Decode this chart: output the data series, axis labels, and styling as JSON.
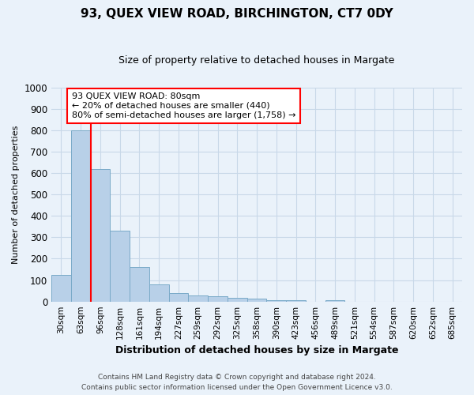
{
  "title": "93, QUEX VIEW ROAD, BIRCHINGTON, CT7 0DY",
  "subtitle": "Size of property relative to detached houses in Margate",
  "xlabel": "Distribution of detached houses by size in Margate",
  "ylabel": "Number of detached properties",
  "footnote1": "Contains HM Land Registry data © Crown copyright and database right 2024.",
  "footnote2": "Contains public sector information licensed under the Open Government Licence v3.0.",
  "bar_labels": [
    "30sqm",
    "63sqm",
    "96sqm",
    "128sqm",
    "161sqm",
    "194sqm",
    "227sqm",
    "259sqm",
    "292sqm",
    "325sqm",
    "358sqm",
    "390sqm",
    "423sqm",
    "456sqm",
    "489sqm",
    "521sqm",
    "554sqm",
    "587sqm",
    "620sqm",
    "652sqm",
    "685sqm"
  ],
  "bar_values": [
    125,
    800,
    620,
    330,
    160,
    80,
    40,
    28,
    25,
    18,
    12,
    8,
    7,
    0,
    8,
    0,
    0,
    0,
    0,
    0,
    0
  ],
  "bar_color": "#b8d0e8",
  "bar_edge_color": "#7aaac8",
  "grid_color": "#c8d8e8",
  "background_color": "#eaf2fa",
  "ylim": [
    0,
    1000
  ],
  "yticks": [
    0,
    100,
    200,
    300,
    400,
    500,
    600,
    700,
    800,
    900,
    1000
  ],
  "property_line_color": "red",
  "annotation_text": "93 QUEX VIEW ROAD: 80sqm\n← 20% of detached houses are smaller (440)\n80% of semi-detached houses are larger (1,758) →",
  "annotation_box_color": "white",
  "annotation_box_edge": "red"
}
